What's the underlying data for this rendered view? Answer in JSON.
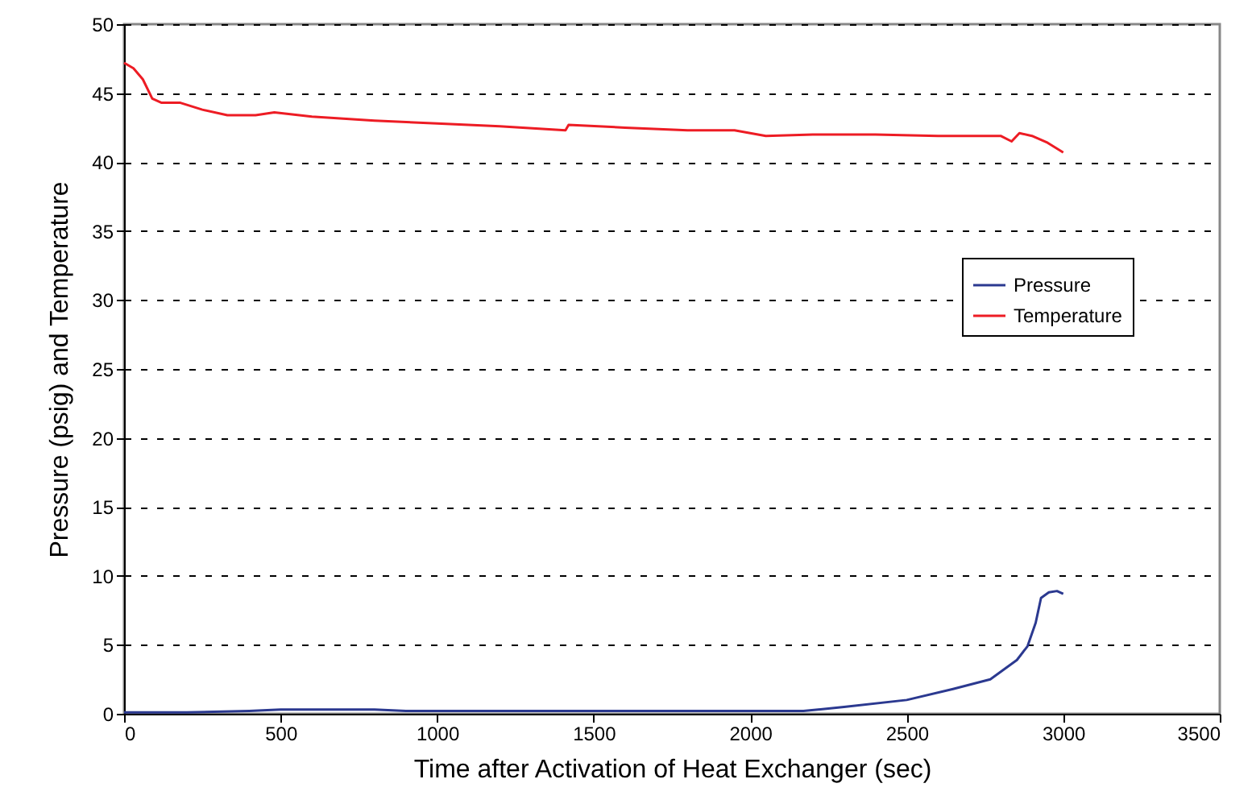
{
  "chart_data": {
    "type": "line",
    "xlabel": "Time after Activation of Heat Exchanger (sec)",
    "ylabel": "Pressure (psig) and Temperature",
    "xlim": [
      0,
      3500
    ],
    "xticks": [
      0,
      500,
      1000,
      1500,
      2000,
      2500,
      3000,
      3500
    ],
    "ylim": [
      0,
      50
    ],
    "yticks": [
      0,
      5,
      10,
      15,
      20,
      25,
      30,
      35,
      40,
      45,
      50
    ],
    "grid": "y",
    "legend": "right",
    "line_style": "solid",
    "marker": "none",
    "series": [
      {
        "name": "Pressure",
        "color": "#2b3990",
        "x": [
          0,
          200,
          400,
          500,
          600,
          800,
          900,
          1000,
          1200,
          1400,
          1500,
          1700,
          1900,
          2000,
          2170,
          2300,
          2500,
          2648,
          2767,
          2852,
          2886,
          2912,
          2929,
          2954,
          2980,
          3000
        ],
        "values": [
          0.1,
          0.1,
          0.2,
          0.3,
          0.3,
          0.3,
          0.2,
          0.2,
          0.2,
          0.2,
          0.2,
          0.2,
          0.2,
          0.2,
          0.2,
          0.5,
          1.0,
          1.8,
          2.5,
          3.9,
          4.9,
          6.6,
          8.4,
          8.8,
          8.9,
          8.7
        ]
      },
      {
        "name": "Temperature",
        "color": "#ed1c24",
        "x": [
          0,
          30,
          60,
          90,
          120,
          180,
          250,
          330,
          420,
          480,
          600,
          800,
          1000,
          1200,
          1410,
          1420,
          1600,
          1800,
          1950,
          2050,
          2200,
          2400,
          2600,
          2800,
          2835,
          2860,
          2900,
          2950,
          3000
        ],
        "values": [
          47.2,
          46.8,
          46,
          44.6,
          44.3,
          44.3,
          43.8,
          43.4,
          43.4,
          43.6,
          43.3,
          43,
          42.8,
          42.6,
          42.3,
          42.7,
          42.5,
          42.3,
          42.3,
          41.9,
          42,
          42,
          41.9,
          41.9,
          41.5,
          42.1,
          41.9,
          41.4,
          40.7
        ]
      }
    ]
  }
}
